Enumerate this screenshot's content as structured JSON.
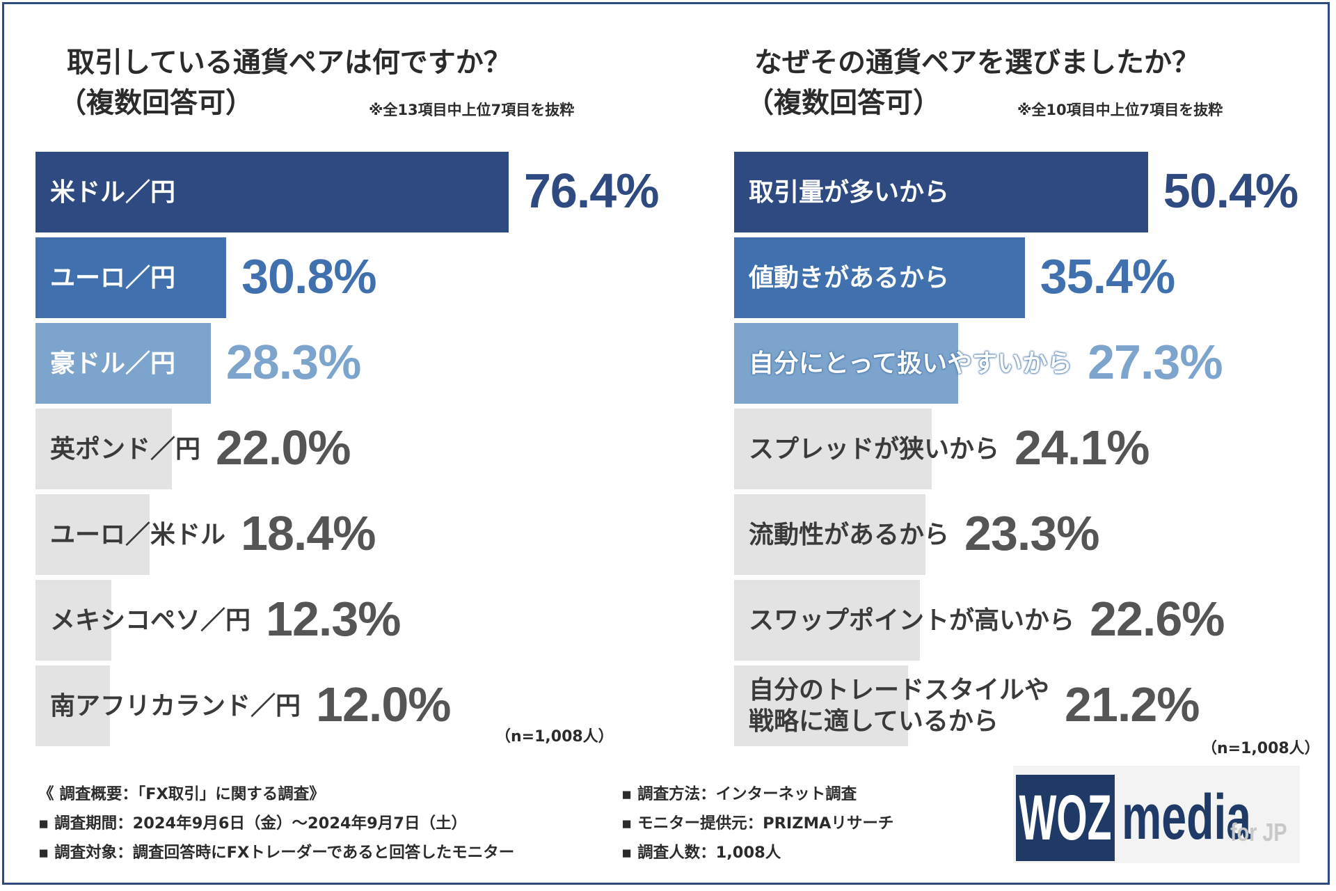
{
  "chart_data": [
    {
      "type": "bar",
      "orientation": "horizontal",
      "title": "取引している通貨ペアは何ですか？",
      "subtitle": "（複数回答可）",
      "note": "※全13項目中上位7項目を抜粋",
      "categories": [
        "米ドル／円",
        "ユーロ／円",
        "豪ドル／円",
        "英ポンド／円",
        "ユーロ／米ドル",
        "メキシコペソ／円",
        "南アフリカランド／円"
      ],
      "values": [
        76.4,
        30.8,
        28.3,
        22.0,
        18.4,
        12.3,
        12.0
      ],
      "value_labels": [
        "76.4%",
        "30.8%",
        "28.3%",
        "22.0%",
        "18.4%",
        "12.3%",
        "12.0%"
      ],
      "sample": "（n=1,008人）",
      "xlim": [
        0,
        100
      ]
    },
    {
      "type": "bar",
      "orientation": "horizontal",
      "title": "なぜその通貨ペアを選びましたか？",
      "subtitle": "（複数回答可）",
      "note": "※全10項目中上位7項目を抜粋",
      "categories": [
        "取引量が多いから",
        "値動きがあるから",
        "自分にとって扱いやすいから",
        "スプレッドが狭いから",
        "流動性があるから",
        "スワップポイントが高いから",
        "自分のトレードスタイルや戦略に適しているから"
      ],
      "category_lines": [
        [
          "取引量が多いから"
        ],
        [
          "値動きがあるから"
        ],
        [
          "自分にとって扱いやすいから"
        ],
        [
          "スプレッドが狭いから"
        ],
        [
          "流動性があるから"
        ],
        [
          "スワップポイントが高いから"
        ],
        [
          "自分のトレードスタイルや",
          "戦略に適しているから"
        ]
      ],
      "values": [
        50.4,
        35.4,
        27.3,
        24.1,
        23.3,
        22.6,
        21.2
      ],
      "value_labels": [
        "50.4%",
        "35.4%",
        "27.3%",
        "24.1%",
        "23.3%",
        "22.6%",
        "21.2%"
      ],
      "sample": "（n=1,008人）",
      "xlim": [
        0,
        70
      ]
    }
  ],
  "colors": {
    "rank1": "#2e4a80",
    "rank2": "#4071ae",
    "rank3": "#7ca4cc",
    "other": "#e3e3e3",
    "label_light": "#ffffff",
    "label_dark": "#3a3a3a",
    "value_dark": "#555555"
  },
  "footer": {
    "left": [
      "《 調査概要：「FX取引」に関する調査》",
      "▪ 調査期間：2024年9月6日（金）〜2024年9月7日（土）",
      "▪ 調査対象：調査回答時にFXトレーダーであると回答したモニター"
    ],
    "right": [
      "▪ 調査方法：インターネット調査",
      "▪ モニター提供元：PRIZMAリサーチ",
      "▪ 調査人数：1,008人"
    ]
  },
  "logo": {
    "woz": "WOZ",
    "media": "media",
    "suffix": "for JP"
  }
}
